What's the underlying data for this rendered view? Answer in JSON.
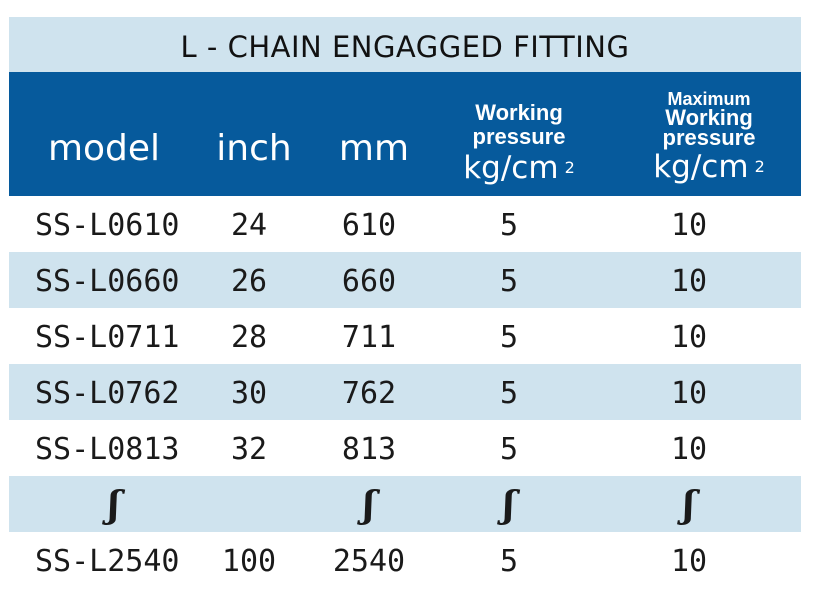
{
  "title": "L - CHAIN ENGAGGED FITTING",
  "header": {
    "model": "model",
    "inch": "inch",
    "mm": "mm",
    "wp_line1": "Working",
    "wp_line2": "pressure",
    "wp_unit": "kg/cm",
    "wp_exp": "2",
    "mwp_line1": "Maximum",
    "mwp_line2": "Working",
    "mwp_line3": "pressure",
    "mwp_unit": "kg/cm",
    "mwp_exp": "2"
  },
  "rows": [
    {
      "model": "SS-L0610",
      "inch": "24",
      "mm": "610",
      "wp": "5",
      "mwp": "10"
    },
    {
      "model": "SS-L0660",
      "inch": "26",
      "mm": "660",
      "wp": "5",
      "mwp": "10"
    },
    {
      "model": "SS-L0711",
      "inch": "28",
      "mm": "711",
      "wp": "5",
      "mwp": "10"
    },
    {
      "model": "SS-L0762",
      "inch": "30",
      "mm": "762",
      "wp": "5",
      "mwp": "10"
    },
    {
      "model": "SS-L0813",
      "inch": "32",
      "mm": "813",
      "wp": "5",
      "mwp": "10"
    },
    {
      "model": "ʃ",
      "inch": "",
      "mm": "ʃ",
      "wp": "ʃ",
      "mwp": "ʃ"
    },
    {
      "model": "SS-L2540",
      "inch": "100",
      "mm": "2540",
      "wp": "5",
      "mwp": "10"
    }
  ],
  "colors": {
    "header_bg": "#065a9c",
    "shade_bg": "#cfe3ee",
    "text": "#1a1a1a"
  }
}
